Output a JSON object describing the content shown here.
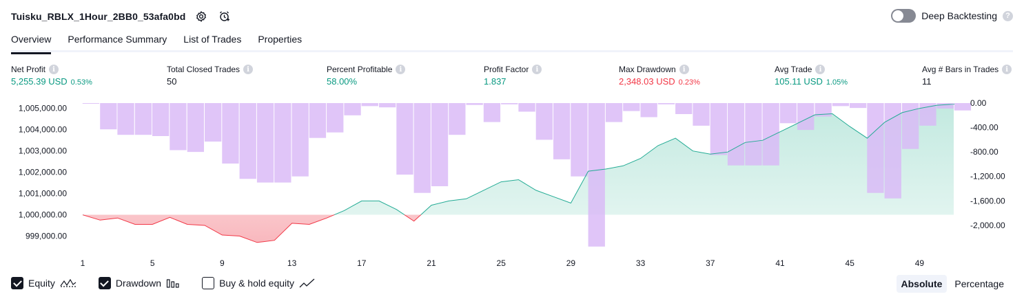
{
  "header": {
    "title": "Tuisku_RBLX_1Hour_2BB0_53afa0bd",
    "deep_backtesting_label": "Deep Backtesting",
    "deep_backtesting_on": false
  },
  "tabs": [
    {
      "label": "Overview",
      "active": true
    },
    {
      "label": "Performance Summary",
      "active": false
    },
    {
      "label": "List of Trades",
      "active": false
    },
    {
      "label": "Properties",
      "active": false
    }
  ],
  "metrics": [
    {
      "label": "Net Profit",
      "value": "5,255.39 USD",
      "pct": "0.53%",
      "tone": "pos"
    },
    {
      "label": "Total Closed Trades",
      "value": "50",
      "pct": "",
      "tone": "neu"
    },
    {
      "label": "Percent Profitable",
      "value": "58.00%",
      "pct": "",
      "tone": "pos"
    },
    {
      "label": "Profit Factor",
      "value": "1.837",
      "pct": "",
      "tone": "pos"
    },
    {
      "label": "Max Drawdown",
      "value": "2,348.03 USD",
      "pct": "0.23%",
      "tone": "neg"
    },
    {
      "label": "Avg Trade",
      "value": "105.11 USD",
      "pct": "1.05%",
      "tone": "pos"
    },
    {
      "label": "Avg # Bars in Trades",
      "value": "11",
      "pct": "",
      "tone": "neu"
    }
  ],
  "legend": {
    "equity": {
      "label": "Equity",
      "checked": true
    },
    "drawdown": {
      "label": "Drawdown",
      "checked": true
    },
    "buyhold": {
      "label": "Buy & hold equity",
      "checked": false
    }
  },
  "modes": {
    "absolute": "Absolute",
    "percentage": "Percentage",
    "active": "absolute"
  },
  "colors": {
    "equity_line_up": "#22ab94",
    "equity_line_down": "#f23645",
    "equity_fill_up": "#d4f0ea",
    "equity_fill_down": "#fdd5d8",
    "drawdown_bar": "#d9b8f7",
    "positive_text": "#089981",
    "negative_text": "#f23645"
  },
  "chart_data": {
    "type": "bar+area",
    "x": [
      1,
      2,
      3,
      4,
      5,
      6,
      7,
      8,
      9,
      10,
      11,
      12,
      13,
      14,
      15,
      16,
      17,
      18,
      19,
      20,
      21,
      22,
      23,
      24,
      25,
      26,
      27,
      28,
      29,
      30,
      31,
      32,
      33,
      34,
      35,
      36,
      37,
      38,
      39,
      40,
      41,
      42,
      43,
      44,
      45,
      46,
      47,
      48,
      49,
      50,
      51
    ],
    "x_ticks": [
      "1",
      "5",
      "9",
      "13",
      "17",
      "21",
      "25",
      "29",
      "33",
      "37",
      "41",
      "45",
      "49"
    ],
    "baseline": 1000000,
    "series": [
      {
        "name": "Equity",
        "axis": "left",
        "values": [
          1000000,
          999750,
          999850,
          999550,
          999550,
          999880,
          999550,
          999500,
          999050,
          999000,
          998700,
          998800,
          999600,
          999550,
          999850,
          1000200,
          1000650,
          1000650,
          1000250,
          999700,
          1000450,
          1000650,
          1000750,
          1001150,
          1001550,
          1001650,
          1001150,
          1000850,
          1000550,
          1002050,
          1002150,
          1002300,
          1002650,
          1003250,
          1003600,
          1003000,
          1002850,
          1002950,
          1003400,
          1003500,
          1003900,
          1004300,
          1004700,
          1004750,
          1004150,
          1003600,
          1004350,
          1004800,
          1005000,
          1005150,
          1005200
        ]
      },
      {
        "name": "Drawdown",
        "axis": "right",
        "values": [
          0,
          -430,
          -520,
          -520,
          -540,
          -770,
          -800,
          -630,
          -990,
          -1240,
          -1300,
          -1300,
          -1200,
          -570,
          -480,
          -200,
          -50,
          -70,
          -1170,
          -1470,
          -1360,
          -520,
          -30,
          -310,
          -20,
          -140,
          -600,
          -920,
          -1200,
          -2348.03,
          -310,
          -130,
          -230,
          -20,
          -180,
          -370,
          -850,
          -1020,
          -1020,
          -1020,
          -330,
          -440,
          -220,
          -50,
          -80,
          -1470,
          -1560,
          -750,
          -370,
          -90,
          -120
        ]
      }
    ],
    "y_left": {
      "ticks": [
        "1,005,000.00",
        "1,004,000.00",
        "1,003,000.00",
        "1,002,000.00",
        "1,001,000.00",
        "1,000,000.00",
        "999,000.00"
      ],
      "range": [
        998500,
        1005250
      ]
    },
    "y_right": {
      "ticks": [
        "0.00",
        "-400.00",
        "-800.00",
        "-1,200.00",
        "-1,600.00",
        "-2,000.00"
      ],
      "range": [
        -2350,
        0
      ]
    },
    "grid": false,
    "title": "",
    "xlabel": "",
    "ylabel": ""
  }
}
